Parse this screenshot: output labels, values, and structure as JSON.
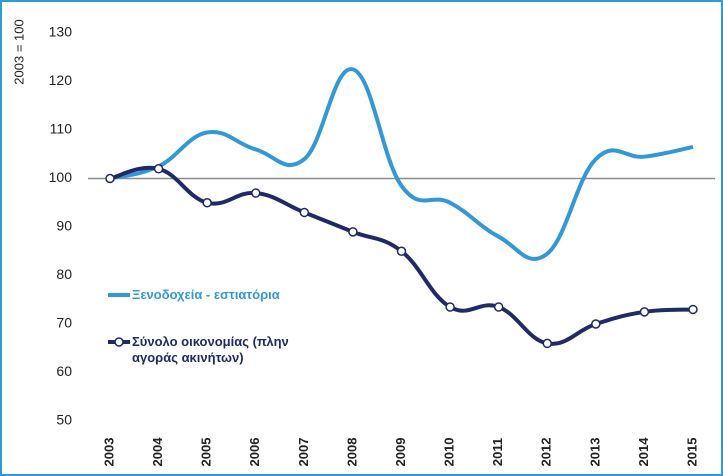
{
  "chart_data": {
    "type": "line",
    "ylabel": "2003 = 100",
    "categories": [
      "2003",
      "2004",
      "2005",
      "2006",
      "2007",
      "2008",
      "2009",
      "2010",
      "2011",
      "2012",
      "2013",
      "2014",
      "2015"
    ],
    "series": [
      {
        "name": "Ξενοδοχεία - εστιατόρια",
        "color": "#3399d6",
        "markers": false,
        "values": [
          100,
          102.5,
          109.5,
          106,
          104,
          122.5,
          98.5,
          95,
          88,
          84.5,
          104,
          104.5,
          106.5
        ]
      },
      {
        "name": "Σύνολο οικονομίας (πλην αγοράς ακινήτων)",
        "color": "#1f2a66",
        "markers": true,
        "values": [
          100,
          102,
          95,
          97,
          93,
          89,
          85,
          73.5,
          73.5,
          66,
          70,
          72.5,
          73
        ]
      }
    ],
    "ylim": [
      50,
      130
    ],
    "yticks": [
      50,
      60,
      70,
      80,
      90,
      100,
      110,
      120,
      130
    ],
    "reference_line": 100
  }
}
